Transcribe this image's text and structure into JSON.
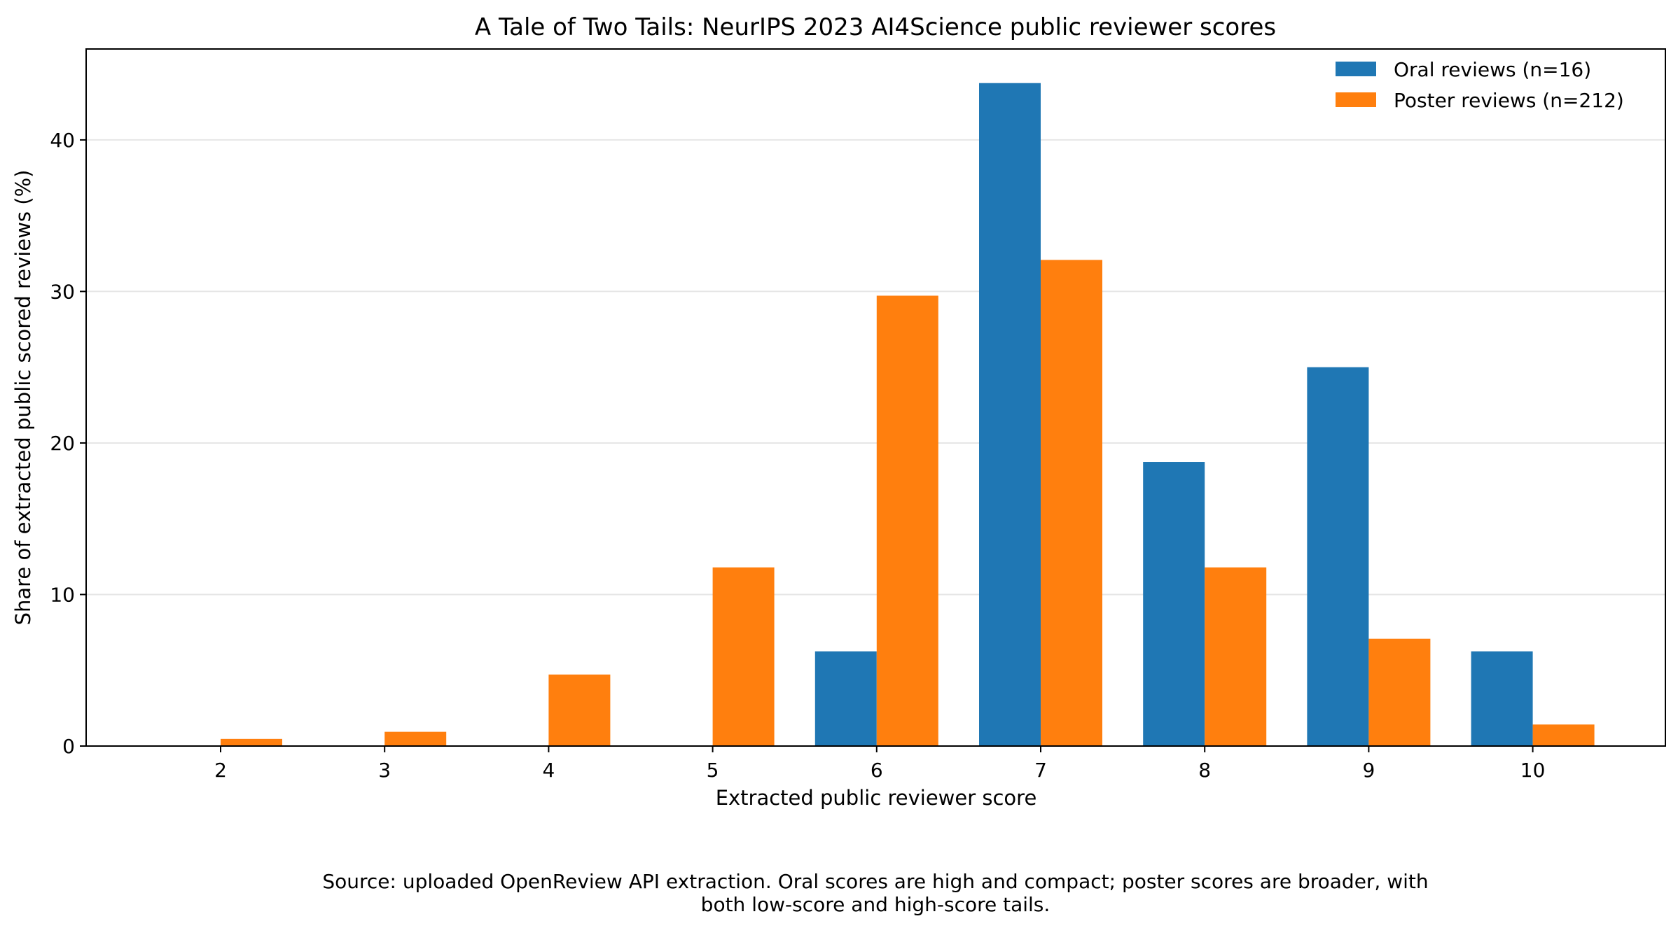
{
  "chart_data": {
    "type": "bar",
    "title": "A Tale of Two Tails: NeurIPS 2023 AI4Science public reviewer scores",
    "xlabel": "Extracted public reviewer score",
    "ylabel": "Share of extracted public scored reviews (%)",
    "categories": [
      "2",
      "3",
      "4",
      "5",
      "6",
      "7",
      "8",
      "9",
      "10"
    ],
    "series": [
      {
        "name": "Oral reviews (n=16)",
        "color": "#1f77b4",
        "values": [
          0,
          0,
          0,
          0,
          6.25,
          43.75,
          18.75,
          25.0,
          6.25
        ]
      },
      {
        "name": "Poster reviews (n=212)",
        "color": "#ff7f0e",
        "values": [
          0.47,
          0.94,
          4.72,
          11.79,
          29.72,
          32.08,
          11.79,
          7.08,
          1.42
        ]
      }
    ],
    "ylim": [
      0,
      46
    ],
    "yticks": [
      0,
      10,
      20,
      30,
      40
    ],
    "grid": "horizontal",
    "legend_position": "top-right",
    "caption_lines": [
      "Source: uploaded OpenReview API extraction. Oral scores are high and compact; poster scores are broader, with",
      "both low-score and high-score tails."
    ]
  }
}
